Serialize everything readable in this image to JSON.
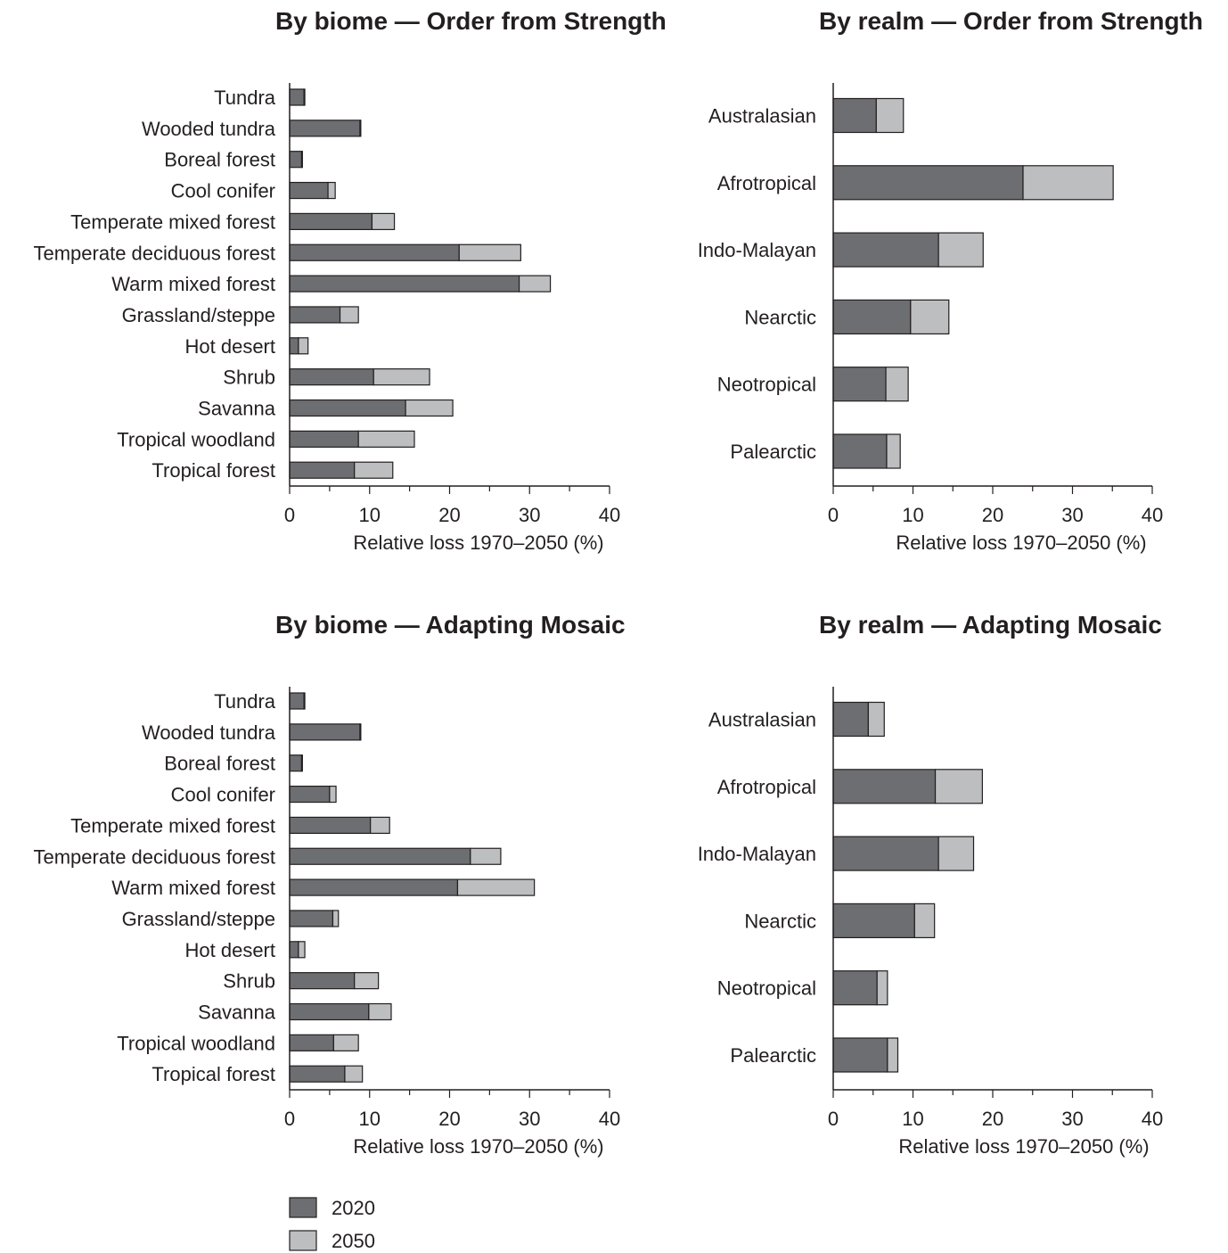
{
  "chart_data": [
    {
      "type": "bar",
      "orientation": "horizontal",
      "stacked": true,
      "title": "By biome — Order from Strength",
      "xlabel": "Relative loss 1970–2050 (%)",
      "xlim": [
        0,
        40
      ],
      "xticks": [
        "0",
        "10",
        "20",
        "30",
        "40"
      ],
      "categories": [
        "Tundra",
        "Wooded tundra",
        "Boreal forest",
        "Cool conifer",
        "Temperate mixed forest",
        "Temperate deciduous forest",
        "Warm mixed forest",
        "Grassland/steppe",
        "Hot desert",
        "Shrub",
        "Savanna",
        "Tropical woodland",
        "Tropical forest"
      ],
      "series": [
        {
          "name": "2020",
          "values": [
            1.8,
            8.8,
            1.5,
            4.8,
            10.3,
            21.2,
            28.7,
            6.3,
            1.1,
            10.5,
            14.5,
            8.6,
            8.1
          ]
        },
        {
          "name": "2050",
          "values": [
            0.1,
            0.1,
            0.1,
            0.9,
            2.8,
            7.7,
            3.9,
            2.3,
            1.2,
            7.0,
            5.9,
            7.0,
            4.8
          ]
        }
      ]
    },
    {
      "type": "bar",
      "orientation": "horizontal",
      "stacked": true,
      "title": "By realm — Order from Strength",
      "xlabel": "Relative loss 1970–2050 (%)",
      "xlim": [
        0,
        40
      ],
      "xticks": [
        "0",
        "10",
        "20",
        "30",
        "40"
      ],
      "categories": [
        "Australasian",
        "Afrotropical",
        "Indo-Malayan",
        "Nearctic",
        "Neotropical",
        "Palearctic"
      ],
      "series": [
        {
          "name": "2020",
          "values": [
            5.4,
            23.8,
            13.2,
            9.7,
            6.6,
            6.7
          ]
        },
        {
          "name": "2050",
          "values": [
            3.4,
            11.3,
            5.6,
            4.8,
            2.8,
            1.7
          ]
        }
      ]
    },
    {
      "type": "bar",
      "orientation": "horizontal",
      "stacked": true,
      "title": "By biome — Adapting Mosaic",
      "xlabel": "Relative loss 1970–2050 (%)",
      "xlim": [
        0,
        40
      ],
      "xticks": [
        "0",
        "10",
        "20",
        "30",
        "40"
      ],
      "categories": [
        "Tundra",
        "Wooded tundra",
        "Boreal forest",
        "Cool conifer",
        "Temperate mixed forest",
        "Temperate deciduous forest",
        "Warm mixed forest",
        "Grassland/steppe",
        "Hot desert",
        "Shrub",
        "Savanna",
        "Tropical woodland",
        "Tropical forest"
      ],
      "series": [
        {
          "name": "2020",
          "values": [
            1.8,
            8.8,
            1.5,
            5.0,
            10.1,
            22.6,
            21.0,
            5.4,
            1.1,
            8.1,
            9.9,
            5.5,
            6.9
          ]
        },
        {
          "name": "2050",
          "values": [
            0.1,
            0.1,
            0.1,
            0.8,
            2.4,
            3.8,
            9.6,
            0.7,
            0.8,
            3.0,
            2.8,
            3.1,
            2.2
          ]
        }
      ]
    },
    {
      "type": "bar",
      "orientation": "horizontal",
      "stacked": true,
      "title": "By realm — Adapting Mosaic",
      "xlabel": "Relative loss 1970–2050 (%)",
      "xlim": [
        0,
        40
      ],
      "xticks": [
        "0",
        "10",
        "20",
        "30",
        "40"
      ],
      "categories": [
        "Australasian",
        "Afrotropical",
        "Indo-Malayan",
        "Nearctic",
        "Neotropical",
        "Palearctic"
      ],
      "series": [
        {
          "name": "2020",
          "values": [
            4.4,
            12.8,
            13.2,
            10.2,
            5.5,
            6.8
          ]
        },
        {
          "name": "2050",
          "values": [
            2.0,
            5.9,
            4.4,
            2.5,
            1.3,
            1.3
          ]
        }
      ]
    }
  ],
  "legend": {
    "position": "bottom-left",
    "items": [
      {
        "label": "2020",
        "color": "#6d6e71"
      },
      {
        "label": "2050",
        "color": "#bcbec0"
      }
    ]
  },
  "colors": {
    "series_2020": "#6d6e71",
    "series_2050": "#bcbec0",
    "axis": "#231f20"
  }
}
